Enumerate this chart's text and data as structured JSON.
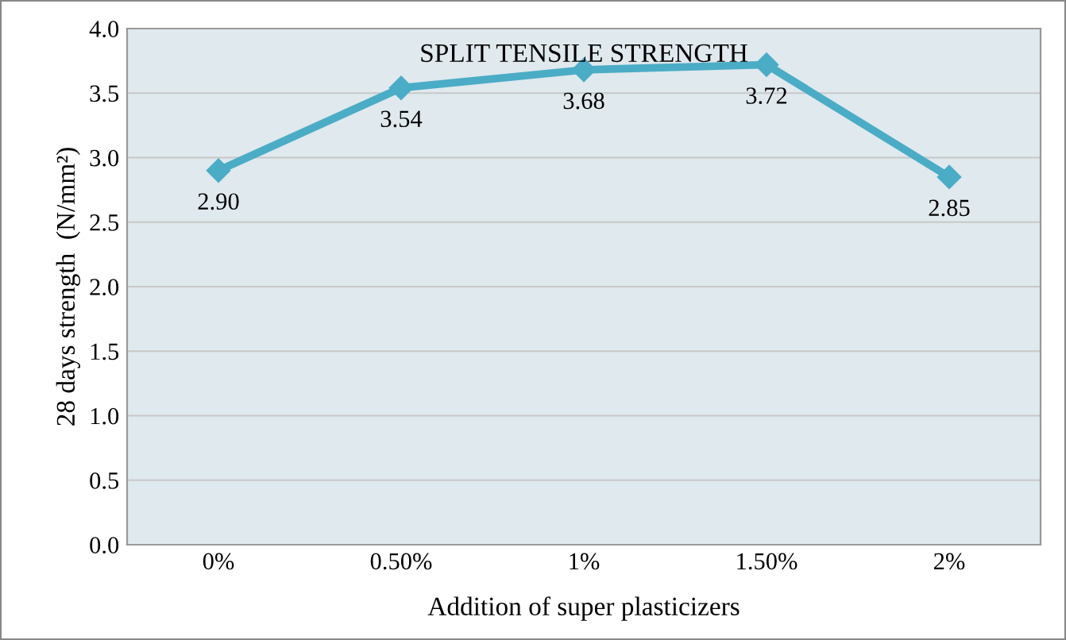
{
  "chart_data": {
    "type": "line",
    "title": "SPLIT TENSILE STRENGTH",
    "xlabel": "Addition of super plasticizers",
    "ylabel": "28 days strength  (N/mm²)",
    "categories": [
      "0%",
      "0.50%",
      "1%",
      "1.50%",
      "2%"
    ],
    "values": [
      2.9,
      3.54,
      3.68,
      3.72,
      2.85
    ],
    "value_labels": [
      "2.90",
      "3.54",
      "3.68",
      "3.72",
      "2.85"
    ],
    "color": "#4bacc6",
    "marker": "diamond",
    "line_style": "solid",
    "ylim": [
      0.0,
      4.0
    ],
    "yticks": [
      {
        "value": 0,
        "label": "0.0"
      },
      {
        "value": 0.5,
        "label": "0.5"
      },
      {
        "value": 1,
        "label": "1.0"
      },
      {
        "value": 1.5,
        "label": "1.5"
      },
      {
        "value": 2,
        "label": "2.0"
      },
      {
        "value": 2.5,
        "label": "2.5"
      },
      {
        "value": 3,
        "label": "3.0"
      },
      {
        "value": 3.5,
        "label": "3.5"
      },
      {
        "value": 4,
        "label": "4.0"
      }
    ],
    "grid": "y"
  }
}
